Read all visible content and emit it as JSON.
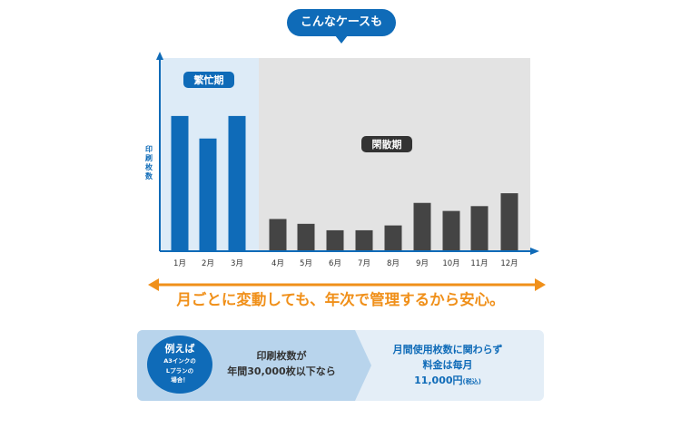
{
  "bubble_text": "こんなケースも",
  "colors": {
    "accent": "#0f6bb8",
    "busy_bg": "#ddebf7",
    "quiet_bg": "#e3e3e3",
    "quiet_bar": "#444444",
    "orange": "#f0901a"
  },
  "chart_data": {
    "type": "bar",
    "categories": [
      "1月",
      "2月",
      "3月",
      "4月",
      "5月",
      "6月",
      "7月",
      "8月",
      "9月",
      "10月",
      "11月",
      "12月"
    ],
    "values": [
      84,
      70,
      84,
      20,
      17,
      13,
      13,
      16,
      30,
      25,
      28,
      36
    ],
    "ylim": [
      0,
      120
    ],
    "ylabel": "印刷枚数",
    "xlabel": "",
    "grid": false,
    "periods": [
      {
        "label": "繁忙期",
        "start": 0,
        "end": 2
      },
      {
        "label": "閑散期",
        "start": 3,
        "end": 11
      }
    ]
  },
  "slogan": "月ごとに変動しても、年次で管理するから安心。",
  "example": {
    "badge_title": "例えば",
    "badge_lines": [
      "A3インクの",
      "Lプランの",
      "場合！"
    ],
    "condition_lines": [
      "印刷枚数が",
      "年間30,000枚以下なら"
    ],
    "result_lines": [
      "月間使用枚数に関わらず",
      "料金は毎月"
    ],
    "price": "11,000円",
    "price_note": "(税込)"
  }
}
